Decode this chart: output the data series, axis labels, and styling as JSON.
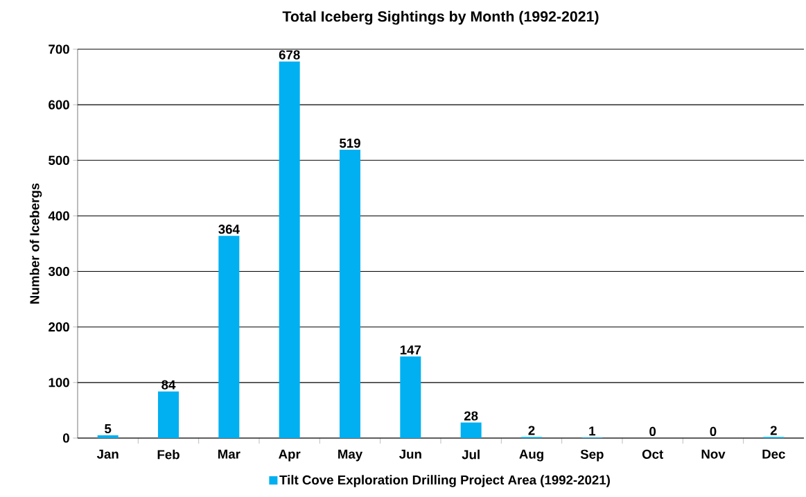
{
  "chart_data": {
    "type": "bar",
    "title": "Total Iceberg Sightings by Month (1992-2021)",
    "ylabel": "Number of Icebergs",
    "categories": [
      "Jan",
      "Feb",
      "Mar",
      "Apr",
      "May",
      "Jun",
      "Jul",
      "Aug",
      "Sep",
      "Oct",
      "Nov",
      "Dec"
    ],
    "series": [
      {
        "name": "Tilt Cove Exploration Drilling Project Area (1992-2021)",
        "color": "#00b0f0",
        "values": [
          5,
          84,
          364,
          678,
          519,
          147,
          28,
          2,
          1,
          0,
          0,
          2
        ]
      }
    ],
    "ylim": [
      0,
      700
    ],
    "yticks": [
      0,
      100,
      200,
      300,
      400,
      500,
      600,
      700
    ],
    "grid": "y",
    "legend": "bottom",
    "data_labels": true
  }
}
